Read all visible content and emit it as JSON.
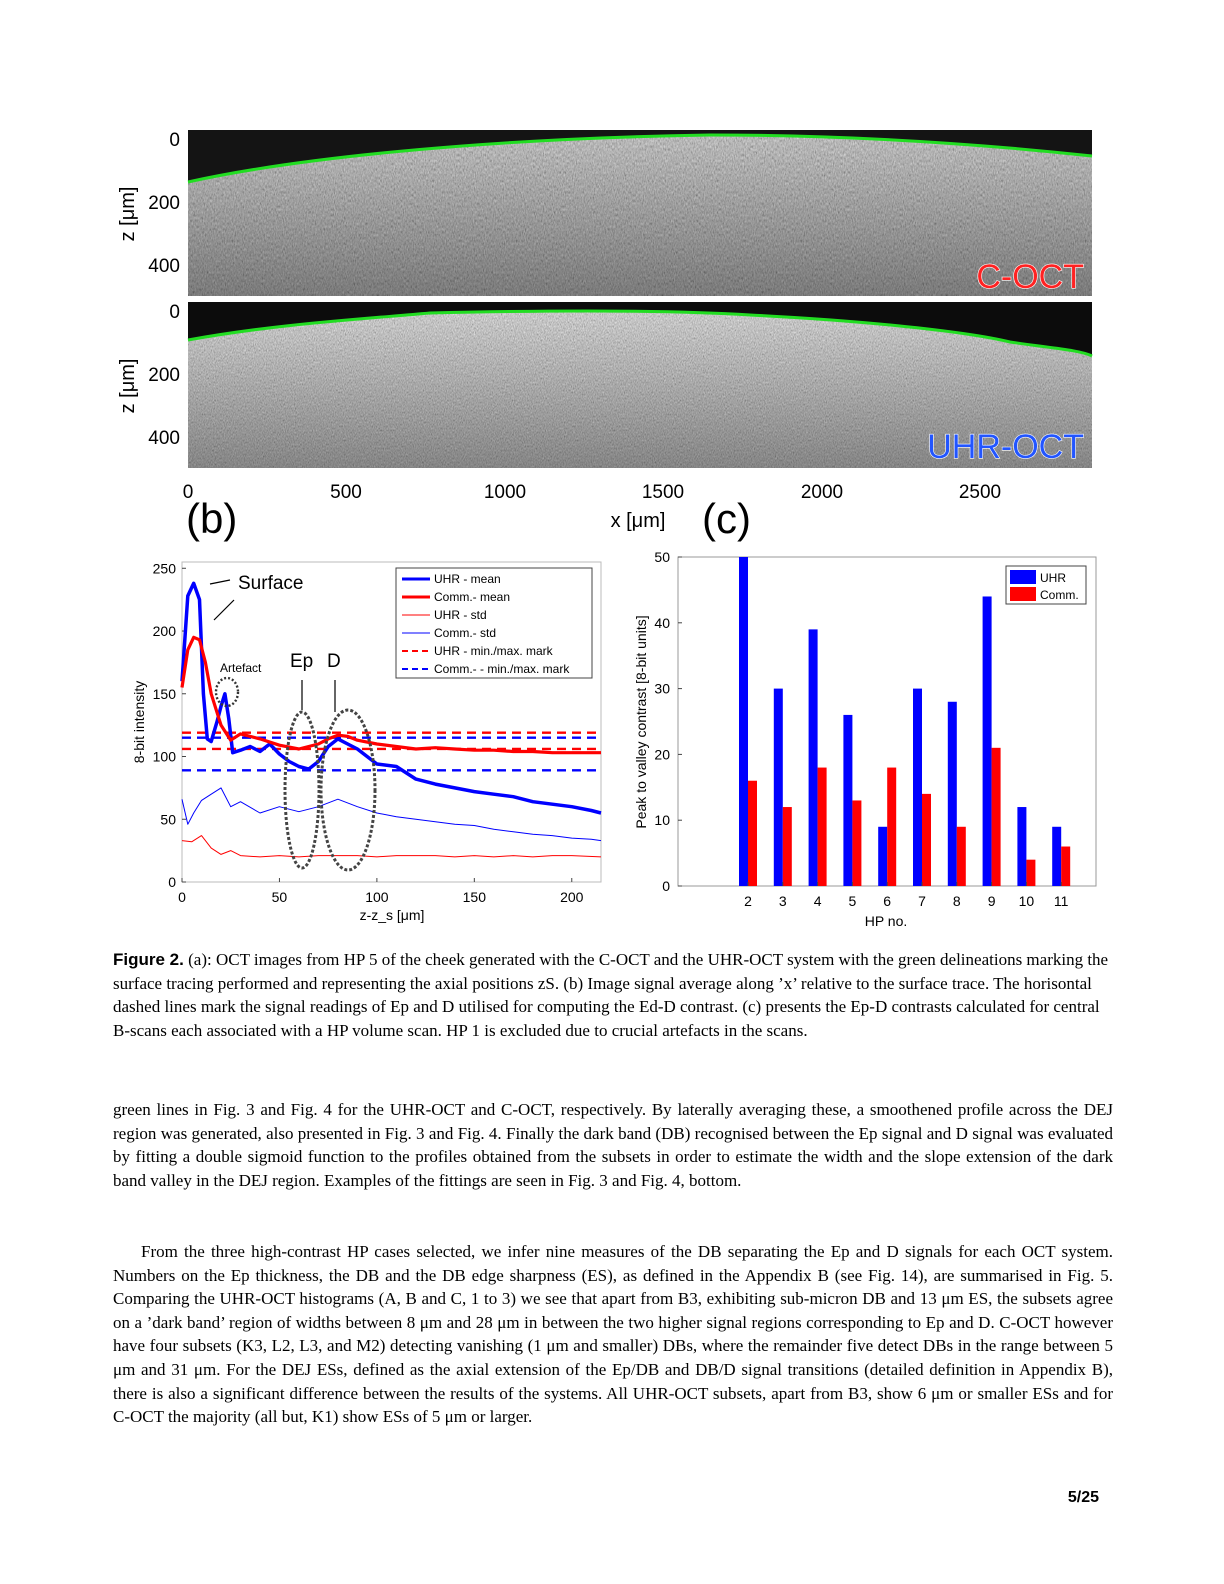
{
  "panel_a": {
    "labels": [
      "C-OCT",
      "UHR-OCT"
    ],
    "z_ticks": [
      "0",
      "200",
      "400"
    ],
    "z_label": "z [μm]",
    "x_ticks": [
      "0",
      "500",
      "1000",
      "1500",
      "2000",
      "2500"
    ],
    "x_label": "x [μm]",
    "label_colors": {
      "coct": "#ff2222",
      "uhr": "#2255ff",
      "trace": "#22dd22"
    }
  },
  "panel_b_label": "(b)",
  "panel_c_label": "(c)",
  "chart_data": [
    {
      "type": "line",
      "ylabel": "8-bit intensity",
      "xlabel": "z-z_s [μm]",
      "xlim": [
        0,
        215
      ],
      "ylim": [
        0,
        255
      ],
      "xticks": [
        "0",
        "50",
        "100",
        "150",
        "200"
      ],
      "yticks": [
        "0",
        "50",
        "100",
        "150",
        "200",
        "250"
      ],
      "annotations": [
        "Surface",
        "Artefact",
        "Ep",
        "D"
      ],
      "series": [
        {
          "name": "UHR - mean",
          "color": "#0000ff",
          "x": [
            0,
            3,
            6,
            9,
            11,
            13,
            15,
            18,
            20,
            22,
            24,
            26,
            30,
            35,
            40,
            45,
            50,
            55,
            60,
            65,
            70,
            75,
            80,
            85,
            90,
            95,
            100,
            110,
            120,
            130,
            140,
            150,
            160,
            170,
            180,
            190,
            200,
            210,
            215
          ],
          "y": [
            160,
            228,
            238,
            225,
            150,
            114,
            112,
            128,
            140,
            150,
            130,
            103,
            105,
            108,
            104,
            110,
            102,
            96,
            92,
            90,
            96,
            108,
            114,
            110,
            106,
            100,
            94,
            92,
            82,
            78,
            75,
            72,
            70,
            68,
            64,
            62,
            60,
            57,
            55
          ]
        },
        {
          "name": "Comm.- mean",
          "color": "#ff0000",
          "x": [
            0,
            3,
            6,
            9,
            12,
            15,
            20,
            25,
            30,
            40,
            50,
            60,
            70,
            75,
            80,
            85,
            90,
            100,
            110,
            120,
            130,
            140,
            150,
            160,
            170,
            180,
            190,
            200,
            210,
            215
          ],
          "y": [
            155,
            185,
            195,
            193,
            175,
            150,
            125,
            113,
            118,
            114,
            109,
            106,
            110,
            114,
            117,
            116,
            113,
            110,
            108,
            106,
            107,
            106,
            105,
            105,
            104,
            104,
            103,
            103,
            103,
            103
          ]
        },
        {
          "name": "UHR - std",
          "color": "#ff0000",
          "x": [
            0,
            5,
            10,
            15,
            20,
            25,
            30,
            40,
            50,
            60,
            70,
            80,
            90,
            100,
            110,
            120,
            130,
            140,
            150,
            160,
            170,
            180,
            190,
            200,
            215
          ],
          "y": [
            33,
            32,
            37,
            27,
            22,
            25,
            21,
            20,
            21,
            20,
            21,
            21,
            21,
            20,
            21,
            21,
            21,
            20,
            21,
            20,
            21,
            20,
            21,
            21,
            20
          ]
        },
        {
          "name": "Comm.- std",
          "color": "#0000ff",
          "x": [
            0,
            3,
            6,
            10,
            15,
            20,
            25,
            30,
            40,
            50,
            60,
            70,
            80,
            90,
            100,
            110,
            120,
            130,
            140,
            150,
            160,
            170,
            180,
            190,
            200,
            210,
            215
          ],
          "y": [
            66,
            46,
            55,
            65,
            70,
            75,
            60,
            64,
            55,
            60,
            56,
            60,
            66,
            60,
            55,
            52,
            50,
            48,
            46,
            45,
            42,
            40,
            38,
            37,
            35,
            34,
            33
          ]
        },
        {
          "name": "UHR - min./max. mark",
          "color": "#ff0000",
          "dashed": true,
          "values": [
            106,
            119
          ]
        },
        {
          "name": "Comm.-  - min./max. mark",
          "color": "#0000ff",
          "dashed": true,
          "values": [
            89,
            115
          ]
        }
      ]
    },
    {
      "type": "bar",
      "ylabel": "Peak to valley contrast [8-bit units]",
      "xlabel": "HP no.",
      "ylim": [
        0,
        50
      ],
      "yticks": [
        "0",
        "10",
        "20",
        "30",
        "40",
        "50"
      ],
      "categories": [
        "2",
        "3",
        "4",
        "5",
        "6",
        "7",
        "8",
        "9",
        "10",
        "11"
      ],
      "series": [
        {
          "name": "UHR",
          "color": "#0000ff",
          "values": [
            50,
            30,
            39,
            26,
            9,
            30,
            28,
            44,
            12,
            9
          ]
        },
        {
          "name": "Comm.",
          "color": "#ff0000",
          "values": [
            16,
            12,
            18,
            13,
            18,
            14,
            9,
            21,
            4,
            6
          ]
        }
      ]
    }
  ],
  "caption": {
    "label": "Figure 2.",
    "text": " (a): OCT images from HP 5 of the cheek generated with the C-OCT and the UHR-OCT system with the green delineations marking the surface tracing performed and representing the axial positions zS. (b) Image signal average along ’x’ relative to the surface trace. The horisontal dashed lines mark the signal readings of Ep and D utilised for computing the Ed-D contrast. (c) presents the Ep-D contrasts calculated for central B-scans each associated with a HP volume scan. HP 1 is excluded due to crucial artefacts in the scans."
  },
  "paragraphs": [
    "green lines in Fig. 3 and Fig. 4 for the UHR-OCT and C-OCT, respectively. By laterally averaging these, a smoothened profile across the DEJ region was generated, also presented in Fig. 3 and Fig. 4. Finally the dark band (DB) recognised between the Ep signal and D signal was evaluated by fitting a double sigmoid function to the profiles obtained from the subsets in order to estimate the width and the slope extension of the dark band valley in the DEJ region. Examples of the fittings are seen in Fig. 3 and Fig. 4, bottom.",
    "From the three high-contrast HP cases selected, we infer nine measures of the DB separating the Ep and D signals for each OCT system. Numbers on the Ep thickness, the DB and the DB edge sharpness (ES), as defined in the Appendix B (see Fig. 14), are summarised in Fig. 5. Comparing the UHR-OCT histograms (A, B and C, 1 to 3) we see that apart from B3, exhibiting sub-micron DB and 13 μm ES, the subsets agree on a ’dark band’ region of widths between 8 μm and 28 μm in between the two higher signal regions corresponding to Ep and D. C-OCT however have four subsets (K3, L2, L3, and M2) detecting vanishing (1 μm and smaller) DBs, where the remainder five detect DBs in the range between 5 μm and 31 μm. For the DEJ ESs, defined as the axial extension of the Ep/DB and DB/D signal transitions (detailed definition in Appendix B), there is also a significant difference between the results of the systems. All UHR-OCT subsets, apart from B3, show 6 μm or smaller ESs and for C-OCT the majority (all but, K1) show ESs of 5 μm or larger."
  ],
  "page_number": "5/25"
}
